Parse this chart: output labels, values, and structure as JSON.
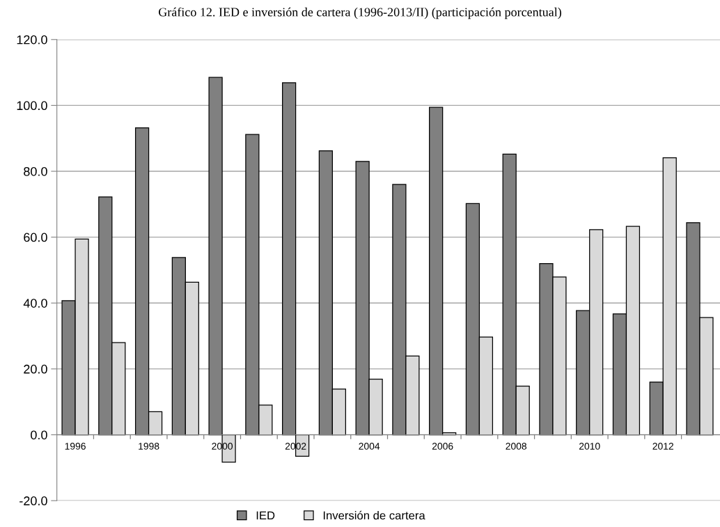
{
  "chart_data": {
    "type": "bar",
    "title": "Gráfico 12. IED e inversión de cartera (1996-2013/II) (participación porcentual)",
    "categories": [
      "1996",
      null,
      "1998",
      null,
      "2000",
      null,
      "2002",
      null,
      "2004",
      null,
      "2006",
      null,
      "2008",
      null,
      "2010",
      null,
      "2012",
      null
    ],
    "series": [
      {
        "name": "IED",
        "color": "#808080",
        "values": [
          40.7,
          72.2,
          93.2,
          53.8,
          108.5,
          91.2,
          106.9,
          86.2,
          83.0,
          76.0,
          99.4,
          70.2,
          85.2,
          52.0,
          37.7,
          36.7,
          16.0,
          64.4
        ]
      },
      {
        "name": "Inversión de cartera",
        "color": "#d9d9d9",
        "values": [
          59.4,
          28.0,
          7.0,
          46.3,
          -8.3,
          9.0,
          -6.5,
          13.9,
          16.9,
          23.9,
          0.6,
          29.7,
          14.8,
          47.9,
          62.3,
          63.3,
          84.1,
          35.6
        ]
      }
    ],
    "ylim": [
      -20,
      120
    ],
    "yticks": [
      {
        "value": -20,
        "label": "-20.0"
      },
      {
        "value": 0,
        "label": "0.0"
      },
      {
        "value": 20,
        "label": "20.0"
      },
      {
        "value": 40,
        "label": "40.0"
      },
      {
        "value": 60,
        "label": "60.0"
      },
      {
        "value": 80,
        "label": "80.0"
      },
      {
        "value": 100,
        "label": "100.0"
      },
      {
        "value": 120,
        "label": "120.0"
      }
    ],
    "grid": "y",
    "legend": "bottom"
  }
}
